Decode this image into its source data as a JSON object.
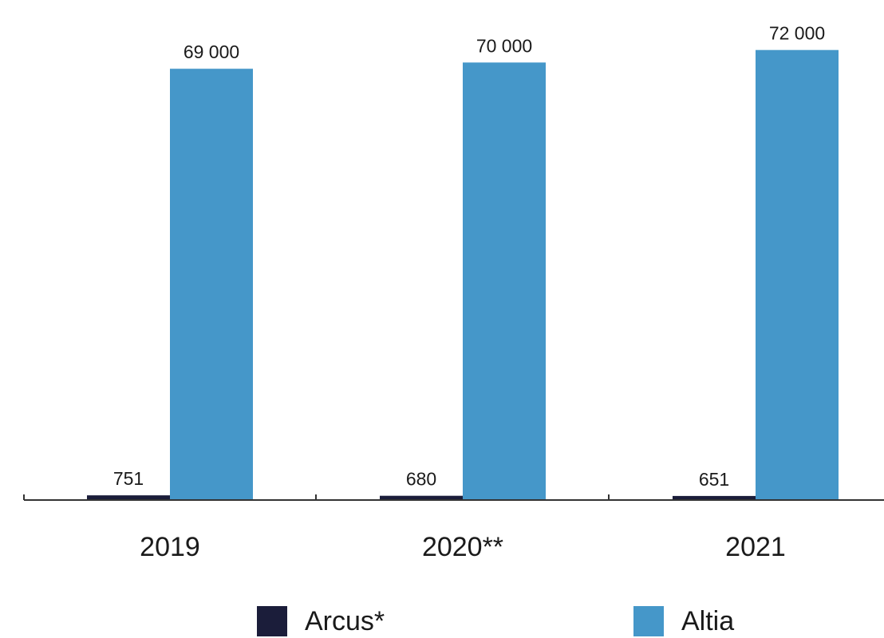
{
  "chart_data": {
    "type": "bar",
    "categories": [
      "2019",
      "2020**",
      "2021"
    ],
    "series": [
      {
        "name": "Arcus*",
        "values": [
          751,
          680,
          651
        ],
        "labels": [
          "751",
          "680",
          "651"
        ],
        "color": "#1b1d3a"
      },
      {
        "name": "Altia",
        "values": [
          69000,
          70000,
          72000
        ],
        "labels": [
          "69 000",
          "70 000",
          "72 000"
        ],
        "color": "#4597c9"
      }
    ],
    "title": "",
    "xlabel": "",
    "ylabel": "",
    "ylim": [
      0,
      80000
    ],
    "grid": false,
    "legend_position": "bottom"
  }
}
